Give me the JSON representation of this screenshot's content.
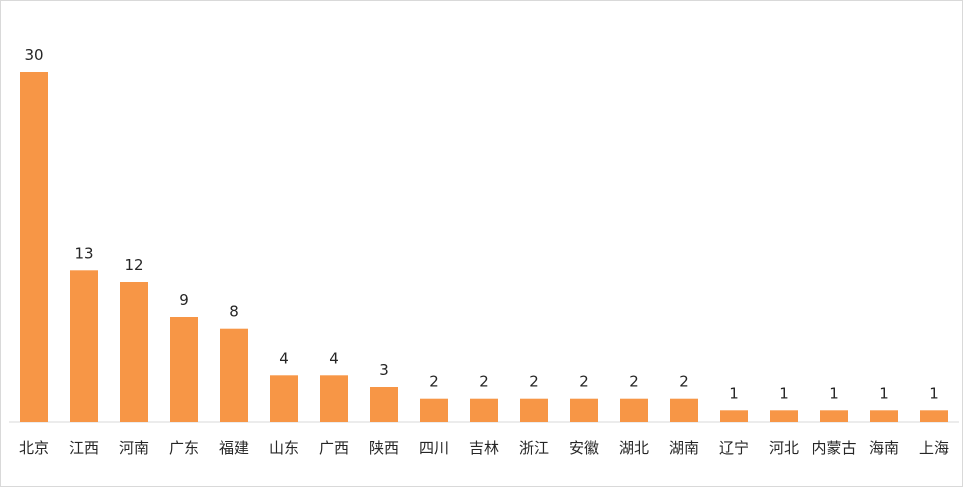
{
  "chart_data": {
    "type": "bar",
    "title": "",
    "xlabel": "",
    "ylabel": "",
    "categories": [
      "北京",
      "江西",
      "河南",
      "广东",
      "福建",
      "山东",
      "广西",
      "陕西",
      "四川",
      "吉林",
      "浙江",
      "安徽",
      "湖北",
      "湖南",
      "辽宁",
      "河北",
      "内蒙古",
      "海南",
      "上海"
    ],
    "values": [
      30,
      13,
      12,
      9,
      8,
      4,
      4,
      3,
      2,
      2,
      2,
      2,
      2,
      2,
      1,
      1,
      1,
      1,
      1
    ],
    "ylim": [
      0,
      30
    ],
    "grid": false,
    "legend": "none",
    "bar_color": "#F79646",
    "axis_color": "#d9d9d9",
    "text_color": "#262626"
  }
}
